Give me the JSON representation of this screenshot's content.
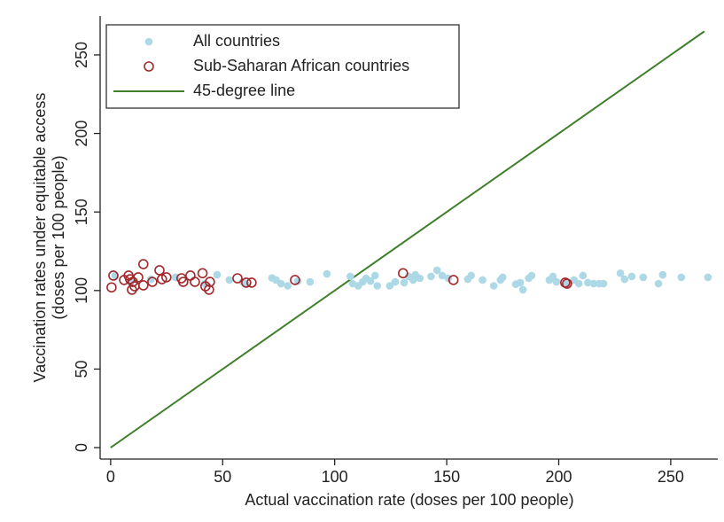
{
  "chart_data": {
    "type": "scatter",
    "xlabel": "Actual vaccination rate (doses per 100 people)",
    "ylabel": [
      "Vaccination rates under equitable access",
      "(doses per 100 people)"
    ],
    "xlim": [
      -4.7,
      271
    ],
    "ylim": [
      -7.3,
      274.8
    ],
    "xticks": [
      0,
      50,
      100,
      150,
      200,
      250
    ],
    "yticks": [
      0,
      50,
      100,
      150,
      200,
      250
    ],
    "legend": "top left",
    "series": [
      {
        "name": "All countries",
        "color": "#add8e6",
        "marker": "filled",
        "x": [
          2,
          9,
          18,
          29,
          42,
          47.5,
          53,
          59,
          60.5,
          72,
          73.8,
          76,
          79,
          83.5,
          89,
          96.5,
          107,
          108,
          110.5,
          112.5,
          114,
          116,
          118,
          119,
          124.6,
          127,
          131,
          133,
          135,
          136,
          138,
          143,
          145.7,
          148,
          150.7,
          159.4,
          160.9,
          166,
          171,
          174,
          175,
          180.8,
          182.8,
          184,
          186.6,
          187.9,
          195.8,
          197.4,
          199,
          203.7,
          206.8,
          209,
          210.8,
          213,
          215.6,
          218,
          220,
          227.5,
          229.4,
          232.6,
          237.7,
          244.5,
          246.4,
          254.7,
          266.6
        ],
        "values": [
          109.5,
          105.5,
          107.2,
          108.4,
          104.4,
          110,
          106.7,
          105.5,
          104,
          108,
          106.7,
          104.4,
          103,
          106,
          105.5,
          110.6,
          109,
          104.4,
          103,
          105.5,
          107.8,
          106,
          109.5,
          103,
          103,
          105.5,
          105,
          109,
          106.7,
          110,
          107.8,
          109,
          112.9,
          109.5,
          107.8,
          107.2,
          109.5,
          106.7,
          103,
          106.7,
          108.4,
          104,
          105,
          100.5,
          107.8,
          109.5,
          106.7,
          109,
          105.5,
          104.4,
          106.7,
          104.4,
          109.5,
          105,
          104.4,
          104.4,
          104.4,
          111,
          107.2,
          109,
          108.4,
          104.4,
          110,
          108.4,
          108.4
        ]
      },
      {
        "name": "Sub-Saharan African countries",
        "color": "#a3282c",
        "marker": "hollow",
        "x": [
          0.4,
          1.2,
          6,
          8,
          8.7,
          9.9,
          9.5,
          10.7,
          12.3,
          14.6,
          14.6,
          18.6,
          21.8,
          22.9,
          24.9,
          31.6,
          32.4,
          35.6,
          37.6,
          41,
          42.3,
          43.9,
          44.3,
          56.6,
          60.5,
          62.9,
          82.3,
          130.5,
          153,
          202.9,
          203.7
        ],
        "values": [
          102,
          109.5,
          106.7,
          109.5,
          107.2,
          105.5,
          100.5,
          102.7,
          108.4,
          116.8,
          103.3,
          105.5,
          112.9,
          107.2,
          108.4,
          107.8,
          105.5,
          109.5,
          105.5,
          111,
          102.7,
          100.5,
          105.5,
          107.8,
          105,
          105,
          106.7,
          111,
          106.7,
          105,
          104.4
        ]
      },
      {
        "name": "45-degree line",
        "color": "#3f7f2a",
        "marker": "line",
        "x": [
          0,
          265
        ],
        "values": [
          0,
          265
        ]
      }
    ]
  }
}
